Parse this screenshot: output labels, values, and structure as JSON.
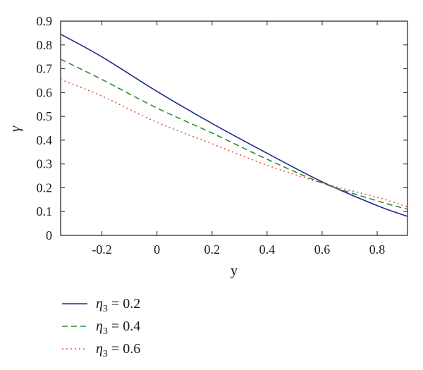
{
  "chart_data": {
    "type": "line",
    "title": "",
    "xlabel": "y",
    "ylabel": "γ",
    "xlim": [
      -0.35,
      0.91
    ],
    "ylim": [
      0,
      0.9
    ],
    "xticks": [
      -0.2,
      0,
      0.2,
      0.4,
      0.6,
      0.8
    ],
    "xtick_labels": [
      "-0.2",
      "0",
      "0.2",
      "0.4",
      "0.6",
      "0.8"
    ],
    "yticks": [
      0,
      0.1,
      0.2,
      0.3,
      0.4,
      0.5,
      0.6,
      0.7,
      0.8,
      0.9
    ],
    "ytick_labels": [
      "0",
      "0.1",
      "0.2",
      "0.3",
      "0.4",
      "0.5",
      "0.6",
      "0.7",
      "0.8",
      "0.9"
    ],
    "grid": false,
    "legend_position": "bottom-left, below plot",
    "x": [
      -0.35,
      -0.2,
      0,
      0.2,
      0.4,
      0.6,
      0.8,
      0.91
    ],
    "series": [
      {
        "name": "η3 = 0.2",
        "legend_symbol": "η",
        "legend_sub": "3",
        "legend_value": " = 0.2",
        "color": "#1f2a8a",
        "dash": "solid",
        "values": [
          0.845,
          0.75,
          0.605,
          0.47,
          0.345,
          0.225,
          0.125,
          0.08
        ]
      },
      {
        "name": "η3 = 0.4",
        "legend_symbol": "η",
        "legend_sub": "3",
        "legend_value": " = 0.4",
        "color": "#2e8b2e",
        "dash": "dashed",
        "values": [
          0.74,
          0.655,
          0.535,
          0.43,
          0.32,
          0.22,
          0.145,
          0.11
        ]
      },
      {
        "name": "η3 = 0.6",
        "legend_symbol": "η",
        "legend_sub": "3",
        "legend_value": " = 0.6",
        "color": "#e4572e",
        "dash": "dotted",
        "values": [
          0.655,
          0.585,
          0.475,
          0.385,
          0.295,
          0.22,
          0.16,
          0.12
        ]
      }
    ]
  }
}
